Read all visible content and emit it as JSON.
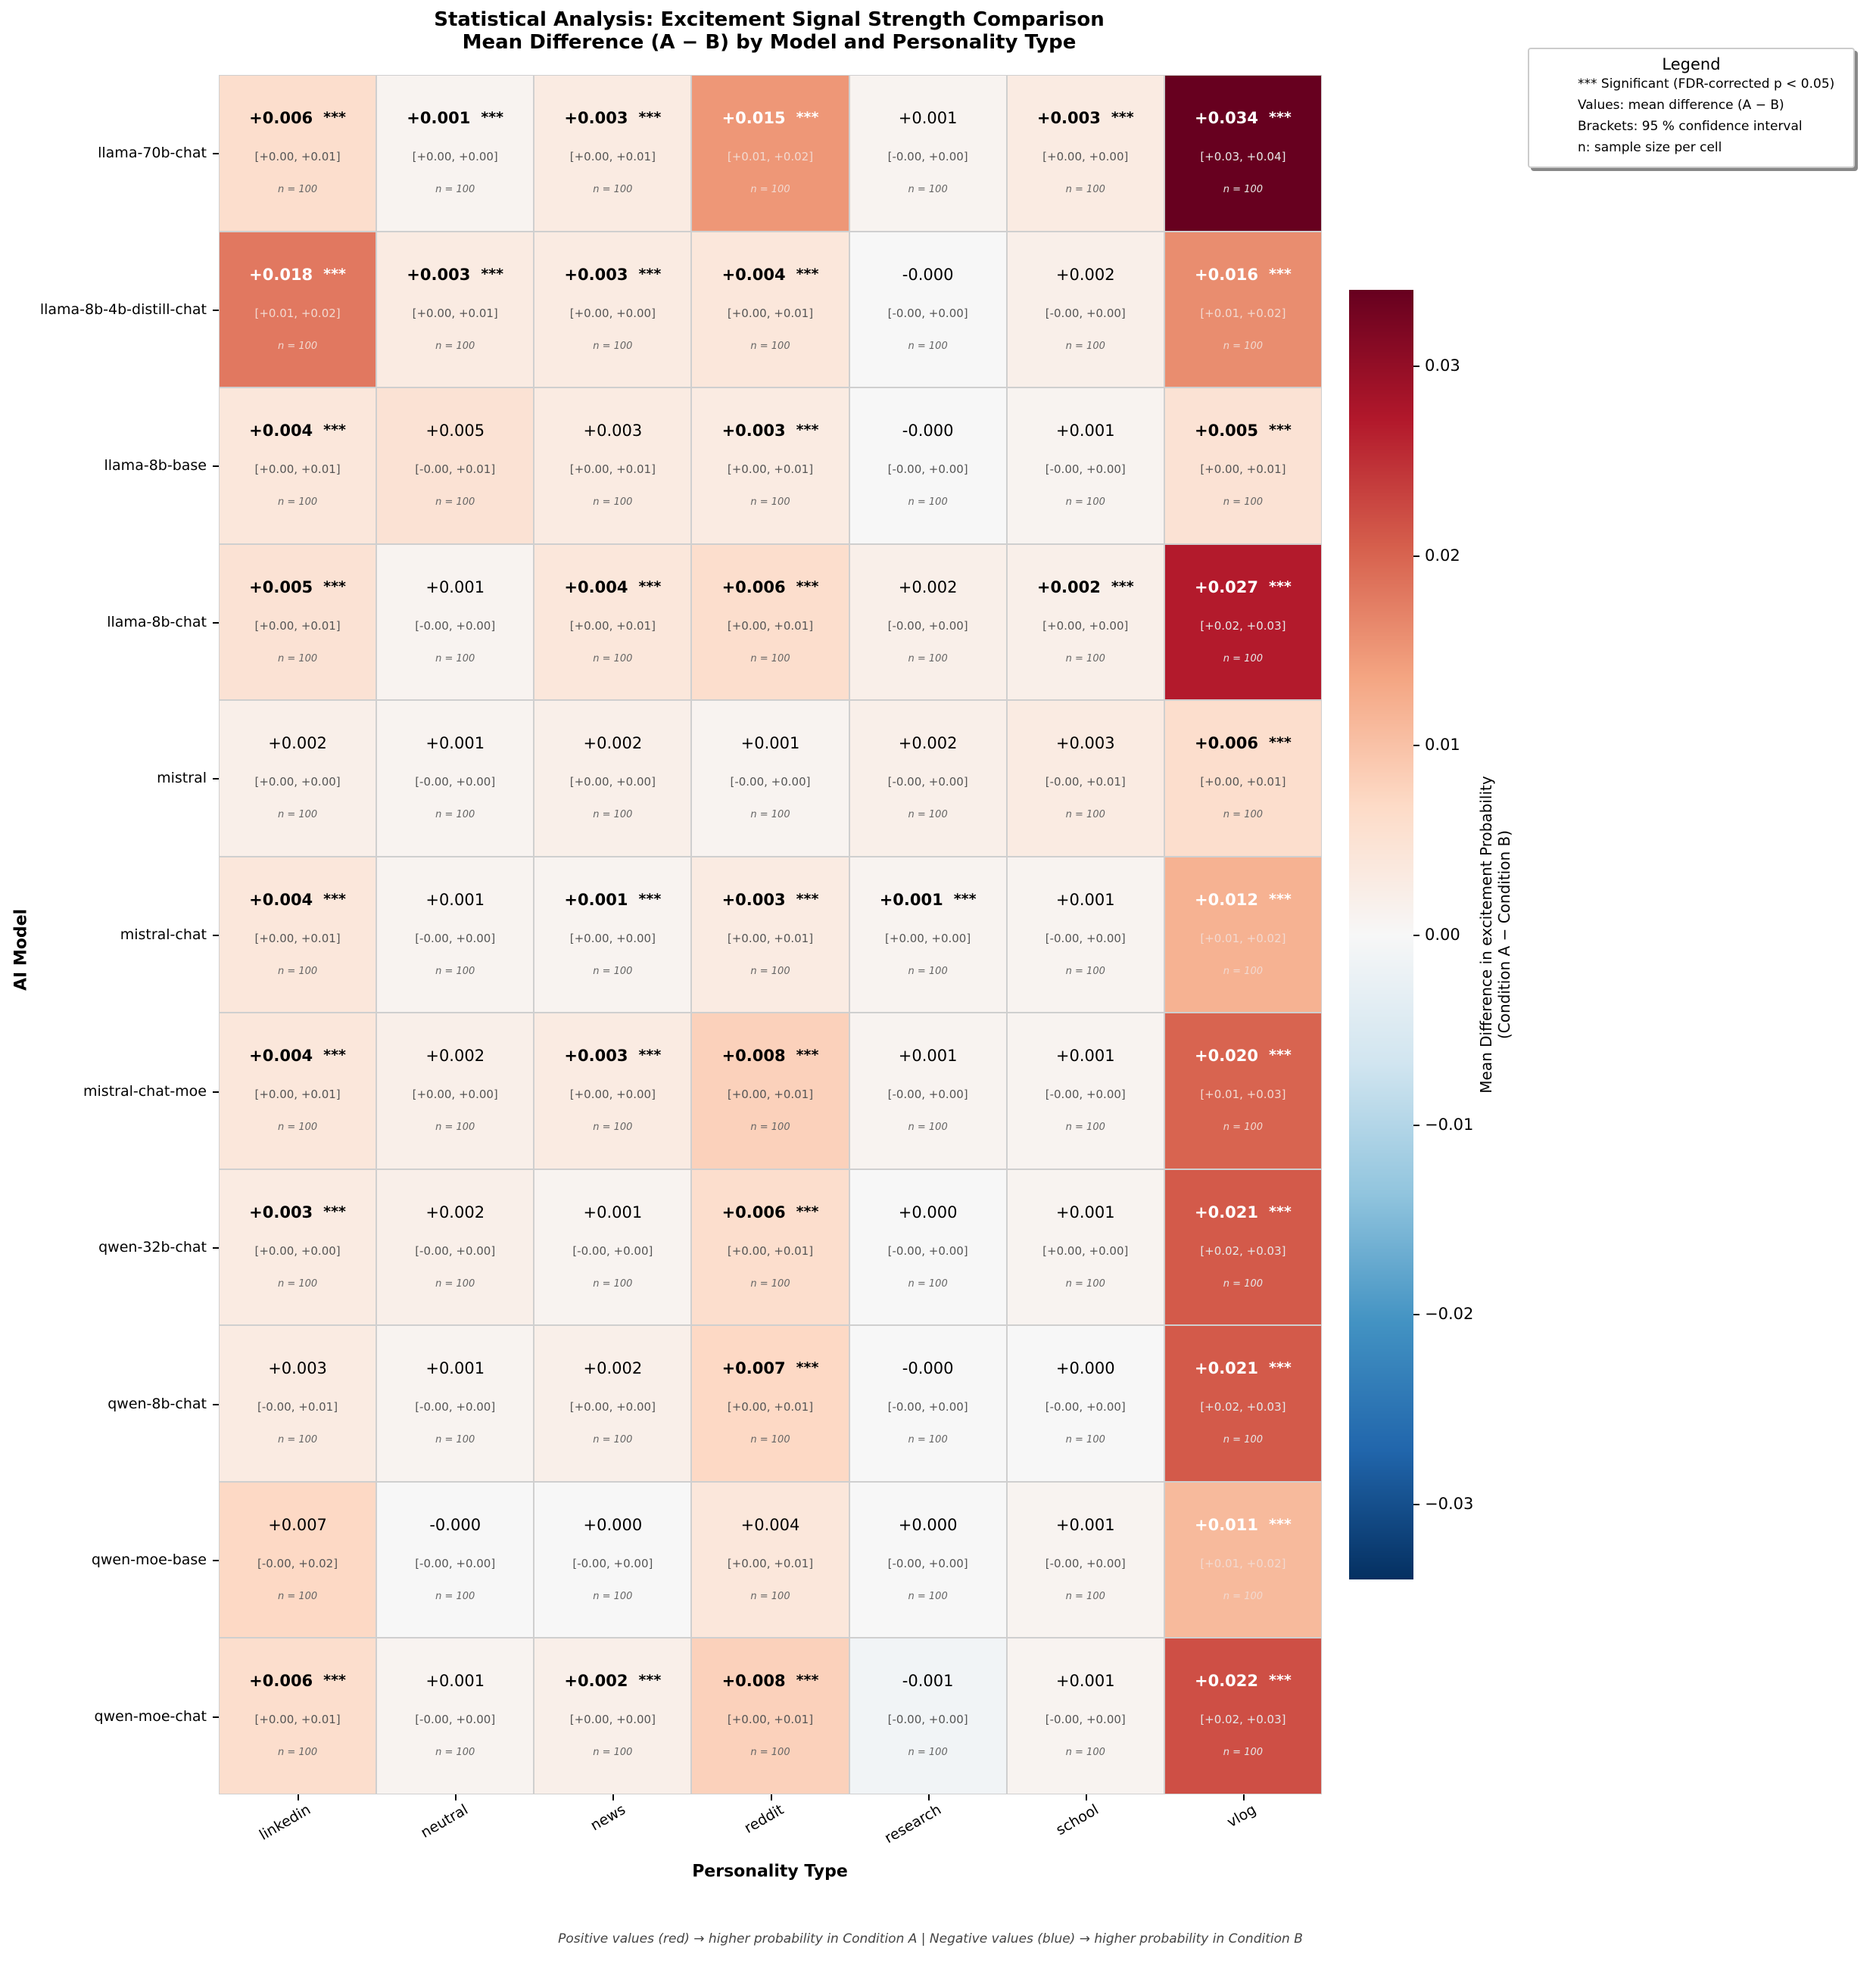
{
  "chart_data": {
    "type": "heatmap",
    "title": "Statistical Analysis: Excitement Signal Strength Comparison",
    "subtitle": "Mean Difference (A − B) by Model and Personality Type",
    "xlabel": "Personality Type",
    "ylabel": "AI Model",
    "columns": [
      "linkedin",
      "neutral",
      "news",
      "reddit",
      "research",
      "school",
      "vlog"
    ],
    "rows": [
      "llama-70b-chat",
      "llama-8b-4b-distill-chat",
      "llama-8b-base",
      "llama-8b-chat",
      "mistral",
      "mistral-chat",
      "mistral-chat-moe",
      "qwen-32b-chat",
      "qwen-8b-chat",
      "qwen-moe-base",
      "qwen-moe-chat"
    ],
    "sig_marker": "***",
    "n_label": "n = 100",
    "colormap": "RdBu_r",
    "vlim": [
      -0.034,
      0.034
    ],
    "cells": [
      [
        {
          "v": "+0.006",
          "s": true,
          "ci": "[+0.00, +0.01]"
        },
        {
          "v": "+0.001",
          "s": true,
          "ci": "[+0.00, +0.00]"
        },
        {
          "v": "+0.003",
          "s": true,
          "ci": "[+0.00, +0.01]"
        },
        {
          "v": "+0.015",
          "s": true,
          "ci": "[+0.01, +0.02]"
        },
        {
          "v": "+0.001",
          "s": false,
          "ci": "[-0.00, +0.00]"
        },
        {
          "v": "+0.003",
          "s": true,
          "ci": "[+0.00, +0.00]"
        },
        {
          "v": "+0.034",
          "s": true,
          "ci": "[+0.03, +0.04]"
        }
      ],
      [
        {
          "v": "+0.018",
          "s": true,
          "ci": "[+0.01, +0.02]"
        },
        {
          "v": "+0.003",
          "s": true,
          "ci": "[+0.00, +0.01]"
        },
        {
          "v": "+0.003",
          "s": true,
          "ci": "[+0.00, +0.00]"
        },
        {
          "v": "+0.004",
          "s": true,
          "ci": "[+0.00, +0.01]"
        },
        {
          "v": "-0.000",
          "s": false,
          "ci": "[-0.00, +0.00]"
        },
        {
          "v": "+0.002",
          "s": false,
          "ci": "[-0.00, +0.00]"
        },
        {
          "v": "+0.016",
          "s": true,
          "ci": "[+0.01, +0.02]"
        }
      ],
      [
        {
          "v": "+0.004",
          "s": true,
          "ci": "[+0.00, +0.01]"
        },
        {
          "v": "+0.005",
          "s": false,
          "ci": "[-0.00, +0.01]"
        },
        {
          "v": "+0.003",
          "s": false,
          "ci": "[+0.00, +0.01]"
        },
        {
          "v": "+0.003",
          "s": true,
          "ci": "[+0.00, +0.01]"
        },
        {
          "v": "-0.000",
          "s": false,
          "ci": "[-0.00, +0.00]"
        },
        {
          "v": "+0.001",
          "s": false,
          "ci": "[-0.00, +0.00]"
        },
        {
          "v": "+0.005",
          "s": true,
          "ci": "[+0.00, +0.01]"
        }
      ],
      [
        {
          "v": "+0.005",
          "s": true,
          "ci": "[+0.00, +0.01]"
        },
        {
          "v": "+0.001",
          "s": false,
          "ci": "[-0.00, +0.00]"
        },
        {
          "v": "+0.004",
          "s": true,
          "ci": "[+0.00, +0.01]"
        },
        {
          "v": "+0.006",
          "s": true,
          "ci": "[+0.00, +0.01]"
        },
        {
          "v": "+0.002",
          "s": false,
          "ci": "[-0.00, +0.00]"
        },
        {
          "v": "+0.002",
          "s": true,
          "ci": "[+0.00, +0.00]"
        },
        {
          "v": "+0.027",
          "s": true,
          "ci": "[+0.02, +0.03]"
        }
      ],
      [
        {
          "v": "+0.002",
          "s": false,
          "ci": "[+0.00, +0.00]"
        },
        {
          "v": "+0.001",
          "s": false,
          "ci": "[-0.00, +0.00]"
        },
        {
          "v": "+0.002",
          "s": false,
          "ci": "[+0.00, +0.00]"
        },
        {
          "v": "+0.001",
          "s": false,
          "ci": "[-0.00, +0.00]"
        },
        {
          "v": "+0.002",
          "s": false,
          "ci": "[-0.00, +0.00]"
        },
        {
          "v": "+0.003",
          "s": false,
          "ci": "[-0.00, +0.01]"
        },
        {
          "v": "+0.006",
          "s": true,
          "ci": "[+0.00, +0.01]"
        }
      ],
      [
        {
          "v": "+0.004",
          "s": true,
          "ci": "[+0.00, +0.01]"
        },
        {
          "v": "+0.001",
          "s": false,
          "ci": "[-0.00, +0.00]"
        },
        {
          "v": "+0.001",
          "s": true,
          "ci": "[+0.00, +0.00]"
        },
        {
          "v": "+0.003",
          "s": true,
          "ci": "[+0.00, +0.01]"
        },
        {
          "v": "+0.001",
          "s": true,
          "ci": "[+0.00, +0.00]"
        },
        {
          "v": "+0.001",
          "s": false,
          "ci": "[-0.00, +0.00]"
        },
        {
          "v": "+0.012",
          "s": true,
          "ci": "[+0.01, +0.02]"
        }
      ],
      [
        {
          "v": "+0.004",
          "s": true,
          "ci": "[+0.00, +0.01]"
        },
        {
          "v": "+0.002",
          "s": false,
          "ci": "[+0.00, +0.00]"
        },
        {
          "v": "+0.003",
          "s": true,
          "ci": "[+0.00, +0.00]"
        },
        {
          "v": "+0.008",
          "s": true,
          "ci": "[+0.00, +0.01]"
        },
        {
          "v": "+0.001",
          "s": false,
          "ci": "[-0.00, +0.00]"
        },
        {
          "v": "+0.001",
          "s": false,
          "ci": "[-0.00, +0.00]"
        },
        {
          "v": "+0.020",
          "s": true,
          "ci": "[+0.01, +0.03]"
        }
      ],
      [
        {
          "v": "+0.003",
          "s": true,
          "ci": "[+0.00, +0.00]"
        },
        {
          "v": "+0.002",
          "s": false,
          "ci": "[-0.00, +0.00]"
        },
        {
          "v": "+0.001",
          "s": false,
          "ci": "[-0.00, +0.00]"
        },
        {
          "v": "+0.006",
          "s": true,
          "ci": "[+0.00, +0.01]"
        },
        {
          "v": "+0.000",
          "s": false,
          "ci": "[-0.00, +0.00]"
        },
        {
          "v": "+0.001",
          "s": false,
          "ci": "[+0.00, +0.00]"
        },
        {
          "v": "+0.021",
          "s": true,
          "ci": "[+0.02, +0.03]"
        }
      ],
      [
        {
          "v": "+0.003",
          "s": false,
          "ci": "[-0.00, +0.01]"
        },
        {
          "v": "+0.001",
          "s": false,
          "ci": "[-0.00, +0.00]"
        },
        {
          "v": "+0.002",
          "s": false,
          "ci": "[+0.00, +0.00]"
        },
        {
          "v": "+0.007",
          "s": true,
          "ci": "[+0.00, +0.01]"
        },
        {
          "v": "-0.000",
          "s": false,
          "ci": "[-0.00, +0.00]"
        },
        {
          "v": "+0.000",
          "s": false,
          "ci": "[-0.00, +0.00]"
        },
        {
          "v": "+0.021",
          "s": true,
          "ci": "[+0.02, +0.03]"
        }
      ],
      [
        {
          "v": "+0.007",
          "s": false,
          "ci": "[-0.00, +0.02]"
        },
        {
          "v": "-0.000",
          "s": false,
          "ci": "[-0.00, +0.00]"
        },
        {
          "v": "+0.000",
          "s": false,
          "ci": "[-0.00, +0.00]"
        },
        {
          "v": "+0.004",
          "s": false,
          "ci": "[+0.00, +0.01]"
        },
        {
          "v": "+0.000",
          "s": false,
          "ci": "[-0.00, +0.00]"
        },
        {
          "v": "+0.001",
          "s": false,
          "ci": "[-0.00, +0.00]"
        },
        {
          "v": "+0.011",
          "s": true,
          "ci": "[+0.01, +0.02]"
        }
      ],
      [
        {
          "v": "+0.006",
          "s": true,
          "ci": "[+0.00, +0.01]"
        },
        {
          "v": "+0.001",
          "s": false,
          "ci": "[-0.00, +0.00]"
        },
        {
          "v": "+0.002",
          "s": true,
          "ci": "[+0.00, +0.00]"
        },
        {
          "v": "+0.008",
          "s": true,
          "ci": "[+0.00, +0.01]"
        },
        {
          "v": "-0.001",
          "s": false,
          "ci": "[-0.00, +0.00]"
        },
        {
          "v": "+0.001",
          "s": false,
          "ci": "[-0.00, +0.00]"
        },
        {
          "v": "+0.022",
          "s": true,
          "ci": "[+0.02, +0.03]"
        }
      ]
    ],
    "colorbar": {
      "label_line1": "Mean Difference in excitement Probability",
      "label_line2": "(Condition A − Condition B)",
      "ticks": [
        0.03,
        0.02,
        0.01,
        0.0,
        -0.01,
        -0.02,
        -0.03
      ],
      "tick_labels": [
        "0.03",
        "0.02",
        "0.01",
        "0.00",
        "−0.01",
        "−0.02",
        "−0.03"
      ]
    },
    "legend": {
      "title": "Legend",
      "items": [
        "*** Significant (FDR-corrected p < 0.05)",
        "Values: mean difference (A − B)",
        "Brackets: 95 % confidence interval",
        "n: sample size per cell"
      ],
      "placement": "top-right"
    },
    "footnote": "Positive values (red) → higher probability in Condition A  |  Negative values (blue) → higher probability in Condition B"
  }
}
